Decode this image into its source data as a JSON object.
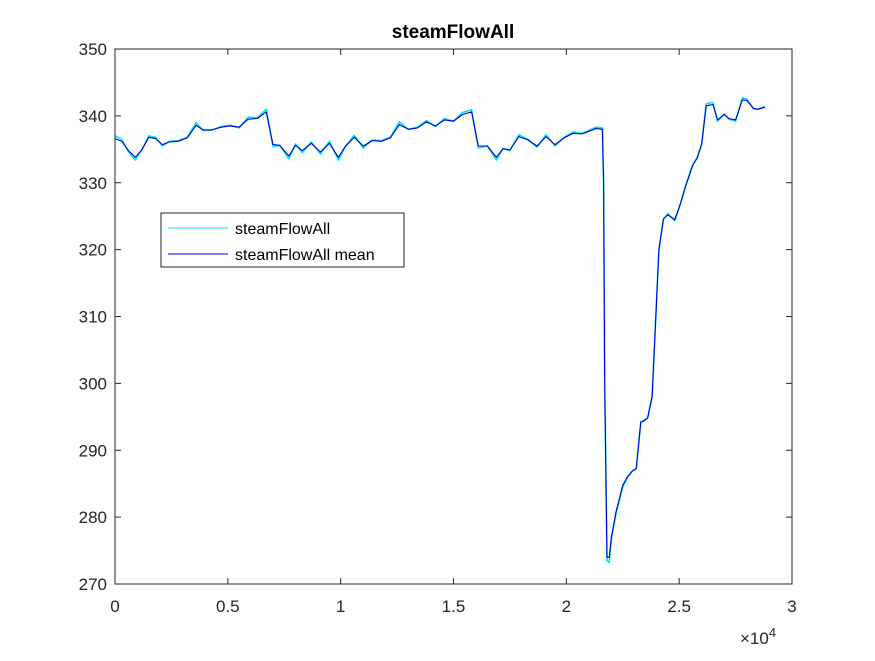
{
  "chart_data": {
    "type": "line",
    "title": "steamFlowAll",
    "xlabel": "",
    "ylabel": "",
    "xlim": [
      0,
      30000
    ],
    "ylim": [
      270,
      350
    ],
    "x_ticks": [
      0,
      5000,
      10000,
      15000,
      20000,
      25000,
      30000
    ],
    "x_tick_labels": [
      "0",
      "0.5",
      "1",
      "1.5",
      "2",
      "2.5",
      "3"
    ],
    "x_exponent_label": "×10",
    "x_exponent_power": "4",
    "y_ticks": [
      270,
      280,
      290,
      300,
      310,
      320,
      330,
      340,
      350
    ],
    "y_tick_labels": [
      "270",
      "280",
      "290",
      "300",
      "310",
      "320",
      "330",
      "340",
      "350"
    ],
    "grid": false,
    "legend_position": "upper-left",
    "series": [
      {
        "name": "steamFlowAll",
        "color": "#00e5ee",
        "x": [
          0,
          300,
          600,
          900,
          1200,
          1500,
          1800,
          2100,
          2400,
          2800,
          3200,
          3600,
          3900,
          4300,
          4700,
          5100,
          5500,
          5900,
          6300,
          6700,
          7000,
          7300,
          7700,
          8000,
          8300,
          8700,
          9100,
          9500,
          9900,
          10200,
          10600,
          11000,
          11400,
          11800,
          12200,
          12600,
          13000,
          13400,
          13800,
          14200,
          14600,
          15000,
          15400,
          15800,
          16100,
          16500,
          16900,
          17200,
          17500,
          17900,
          18300,
          18700,
          19100,
          19500,
          19900,
          20300,
          20700,
          21000,
          21300,
          21600,
          21650,
          21700,
          21800,
          21900,
          22000,
          22200,
          22500,
          22700,
          22900,
          23100,
          23300,
          23400,
          23600,
          23800,
          23900,
          24100,
          24300,
          24500,
          24800,
          25000,
          25300,
          25600,
          25800,
          26000,
          26200,
          26500,
          26700,
          27000,
          27200,
          27500,
          27800,
          28000,
          28300,
          28500,
          28800
        ],
        "values": [
          337,
          336.5,
          334.6,
          333.4,
          335,
          337,
          336.8,
          335.5,
          336.2,
          336.3,
          336.8,
          339,
          337.8,
          337.9,
          338.4,
          338.6,
          338.2,
          339.8,
          339.7,
          341,
          335.4,
          335.6,
          333.6,
          335.8,
          334.5,
          336.1,
          334.3,
          336.2,
          333.4,
          335.4,
          337.1,
          335.2,
          336.4,
          336.3,
          336.8,
          339.1,
          338,
          338.3,
          339.3,
          338.4,
          339.6,
          339.2,
          340.5,
          340.9,
          335.2,
          335.5,
          333.4,
          335.1,
          334.8,
          337.2,
          336.5,
          335.3,
          337.2,
          335.5,
          336.8,
          337.6,
          337.4,
          337.8,
          338.3,
          338.2,
          330,
          300,
          273.5,
          273.2,
          277,
          280.5,
          284.5,
          285.9,
          286.8,
          287.3,
          294.3,
          294.4,
          294.8,
          298,
          305,
          320,
          324.5,
          325.4,
          324.3,
          326.3,
          329.7,
          332.7,
          333.8,
          335.8,
          341.8,
          342,
          339.2,
          340.3,
          339.5,
          339.2,
          342.7,
          342.5,
          341,
          341,
          341.4
        ]
      },
      {
        "name": "steamFlowAll mean",
        "color": "#0000cd",
        "x": [
          0,
          300,
          600,
          900,
          1200,
          1500,
          1800,
          2100,
          2400,
          2800,
          3200,
          3600,
          3900,
          4300,
          4700,
          5100,
          5500,
          5900,
          6300,
          6700,
          7000,
          7300,
          7700,
          8000,
          8300,
          8700,
          9100,
          9500,
          9900,
          10200,
          10600,
          11000,
          11400,
          11800,
          12200,
          12600,
          13000,
          13400,
          13800,
          14200,
          14600,
          15000,
          15400,
          15800,
          16100,
          16500,
          16900,
          17200,
          17500,
          17900,
          18300,
          18700,
          19100,
          19500,
          19900,
          20300,
          20700,
          21000,
          21300,
          21600,
          21650,
          21700,
          21800,
          21900,
          22000,
          22200,
          22500,
          22700,
          22900,
          23100,
          23300,
          23400,
          23600,
          23800,
          23900,
          24100,
          24300,
          24500,
          24800,
          25000,
          25300,
          25600,
          25800,
          26000,
          26200,
          26500,
          26700,
          27000,
          27200,
          27500,
          27800,
          28000,
          28300,
          28500,
          28800
        ],
        "values": [
          336.6,
          336.2,
          334.8,
          333.8,
          335,
          336.8,
          336.6,
          335.7,
          336.1,
          336.2,
          336.7,
          338.6,
          337.9,
          337.9,
          338.3,
          338.5,
          338.3,
          339.5,
          339.6,
          340.6,
          335.7,
          335.6,
          334,
          335.6,
          334.8,
          335.9,
          334.6,
          335.9,
          333.8,
          335.4,
          336.8,
          335.5,
          336.3,
          336.2,
          336.7,
          338.7,
          338,
          338.2,
          339.1,
          338.5,
          339.4,
          339.2,
          340.2,
          340.6,
          335.5,
          335.5,
          333.8,
          335.1,
          334.9,
          336.9,
          336.4,
          335.5,
          336.9,
          335.7,
          336.7,
          337.4,
          337.3,
          337.7,
          338.1,
          338,
          330,
          300,
          274,
          274,
          277,
          280.8,
          284.8,
          286,
          286.8,
          287.3,
          294.2,
          294.3,
          294.8,
          298,
          305,
          320,
          324.6,
          325.2,
          324.5,
          326.3,
          329.6,
          332.6,
          333.7,
          335.8,
          341.5,
          341.7,
          339.4,
          340.2,
          339.6,
          339.4,
          342.4,
          342.3,
          341.1,
          341,
          341.3
        ]
      }
    ]
  }
}
